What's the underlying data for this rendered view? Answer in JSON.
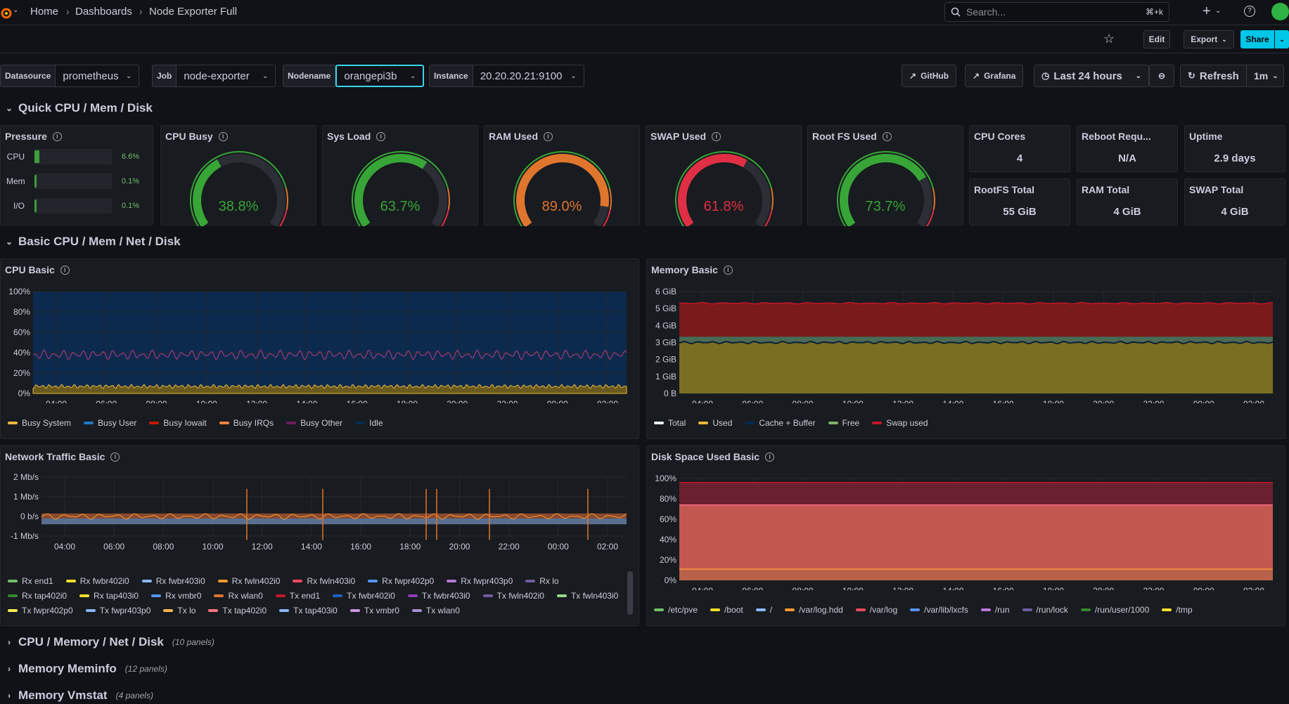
{
  "breadcrumb": {
    "home": "Home",
    "dashboards": "Dashboards",
    "current": "Node Exporter Full"
  },
  "search": {
    "placeholder": "Search...",
    "shortcut": "⌘+k"
  },
  "toolbar": {
    "edit": "Edit",
    "export": "Export",
    "share": "Share"
  },
  "variables": [
    {
      "label": "Datasource",
      "value": "prometheus"
    },
    {
      "label": "Job",
      "value": "node-exporter"
    },
    {
      "label": "Nodename",
      "value": "orangepi3b"
    },
    {
      "label": "Instance",
      "value": "20.20.20.21:9100"
    }
  ],
  "links": {
    "github": "GitHub",
    "grafana": "Grafana"
  },
  "time": {
    "range": "Last 24 hours",
    "refresh": "Refresh",
    "interval": "1m"
  },
  "rows": {
    "quick": "Quick CPU / Mem / Disk",
    "basic": "Basic CPU / Mem / Net / Disk",
    "collapsed": [
      {
        "title": "CPU / Memory / Net / Disk",
        "count": "(10 panels)"
      },
      {
        "title": "Memory Meminfo",
        "count": "(12 panels)"
      },
      {
        "title": "Memory Vmstat",
        "count": "(4 panels)"
      }
    ]
  },
  "pressure": {
    "title": "Pressure",
    "items": [
      {
        "label": "CPU",
        "value": "6.6%",
        "fraction": 0.066
      },
      {
        "label": "Mem",
        "value": "0.1%",
        "fraction": 0.001
      },
      {
        "label": "I/O",
        "value": "0.1%",
        "fraction": 0.001
      }
    ]
  },
  "gauges": [
    {
      "title": "CPU Busy",
      "value": "38.8%",
      "fraction": 0.388,
      "color": "#37a637"
    },
    {
      "title": "Sys Load",
      "value": "63.7%",
      "fraction": 0.637,
      "color": "#37a637"
    },
    {
      "title": "RAM Used",
      "value": "89.0%",
      "fraction": 0.89,
      "color": "#e0752d"
    },
    {
      "title": "SWAP Used",
      "value": "61.8%",
      "fraction": 0.618,
      "color": "#e02f44"
    },
    {
      "title": "Root FS Used",
      "value": "73.7%",
      "fraction": 0.737,
      "color": "#37a637"
    }
  ],
  "stats": [
    {
      "title": "CPU Cores",
      "value": "4"
    },
    {
      "title": "Reboot Requ...",
      "value": "N/A"
    },
    {
      "title": "Uptime",
      "value": "2.9 days"
    },
    {
      "title": "RootFS Total",
      "value": "55 GiB"
    },
    {
      "title": "RAM Total",
      "value": "4 GiB"
    },
    {
      "title": "SWAP Total",
      "value": "4 GiB"
    }
  ],
  "xticks": [
    "04:00",
    "06:00",
    "08:00",
    "10:00",
    "12:00",
    "14:00",
    "16:00",
    "18:00",
    "20:00",
    "22:00",
    "00:00",
    "02:00"
  ],
  "cpu_basic": {
    "title": "CPU Basic",
    "yticks": [
      "100%",
      "80%",
      "60%",
      "40%",
      "20%",
      "0%"
    ],
    "legend": [
      {
        "name": "Busy System",
        "color": "#eab839"
      },
      {
        "name": "Busy User",
        "color": "#1f78c1"
      },
      {
        "name": "Busy Iowait",
        "color": "#bf1b00"
      },
      {
        "name": "Busy IRQs",
        "color": "#ef843c"
      },
      {
        "name": "Busy Other",
        "color": "#6d1f62"
      },
      {
        "name": "Idle",
        "color": "#052b51"
      }
    ]
  },
  "memory_basic": {
    "title": "Memory Basic",
    "yticks": [
      "6 GiB",
      "5 GiB",
      "4 GiB",
      "3 GiB",
      "2 GiB",
      "1 GiB",
      "0 B"
    ],
    "legend": [
      {
        "name": "Total",
        "color": "#e9f0f6"
      },
      {
        "name": "Used",
        "color": "#eab839"
      },
      {
        "name": "Cache + Buffer",
        "color": "#052b51"
      },
      {
        "name": "Free",
        "color": "#7eb26d"
      },
      {
        "name": "Swap used",
        "color": "#c4162a"
      }
    ]
  },
  "network_basic": {
    "title": "Network Traffic Basic",
    "yticks": [
      "2 Mb/s",
      "1 Mb/s",
      "0 b/s",
      "-1 Mb/s"
    ],
    "legend": [
      {
        "name": "Rx end1",
        "color": "#73bf69"
      },
      {
        "name": "Rx fwbr402i0",
        "color": "#fade2a"
      },
      {
        "name": "Rx fwbr403i0",
        "color": "#8ab8ff"
      },
      {
        "name": "Rx fwln402i0",
        "color": "#ff9830"
      },
      {
        "name": "Rx fwln403i0",
        "color": "#f2495c"
      },
      {
        "name": "Rx fwpr402p0",
        "color": "#5794f2"
      },
      {
        "name": "Rx fwpr403p0",
        "color": "#b877d9"
      },
      {
        "name": "Rx lo",
        "color": "#705da0"
      },
      {
        "name": "Rx tap402i0",
        "color": "#37872d"
      },
      {
        "name": "Rx tap403i0",
        "color": "#fade2a"
      },
      {
        "name": "Rx vmbr0",
        "color": "#5794f2"
      },
      {
        "name": "Rx wlan0",
        "color": "#e0752d"
      },
      {
        "name": "Tx end1",
        "color": "#c4162a"
      },
      {
        "name": "Tx fwbr402i0",
        "color": "#1f60c4"
      },
      {
        "name": "Tx fwbr403i0",
        "color": "#8f3bb8"
      },
      {
        "name": "Tx fwln402i0",
        "color": "#705da0"
      },
      {
        "name": "Tx fwln403i0",
        "color": "#96d98d"
      },
      {
        "name": "Tx fwpr402p0",
        "color": "#ffee52"
      },
      {
        "name": "Tx fwpr403p0",
        "color": "#8ab8ff"
      },
      {
        "name": "Tx lo",
        "color": "#ffb357"
      },
      {
        "name": "Tx tap402i0",
        "color": "#ff7383"
      },
      {
        "name": "Tx tap403i0",
        "color": "#8ab8ff"
      },
      {
        "name": "Tx vmbr0",
        "color": "#ca95e5"
      },
      {
        "name": "Tx wlan0",
        "color": "#a791d6"
      }
    ]
  },
  "disk_basic": {
    "title": "Disk Space Used Basic",
    "yticks": [
      "100%",
      "80%",
      "60%",
      "40%",
      "20%",
      "0%"
    ],
    "legend": [
      {
        "name": "/etc/pve",
        "color": "#73bf69"
      },
      {
        "name": "/boot",
        "color": "#fade2a"
      },
      {
        "name": "/",
        "color": "#8ab8ff"
      },
      {
        "name": "/var/log.hdd",
        "color": "#ff9830"
      },
      {
        "name": "/var/log",
        "color": "#f2495c"
      },
      {
        "name": "/var/lib/lxcfs",
        "color": "#5794f2"
      },
      {
        "name": "/run",
        "color": "#b877d9"
      },
      {
        "name": "/run/lock",
        "color": "#705da0"
      },
      {
        "name": "/run/user/1000",
        "color": "#37872d"
      },
      {
        "name": "/tmp",
        "color": "#fade2a"
      }
    ]
  }
}
